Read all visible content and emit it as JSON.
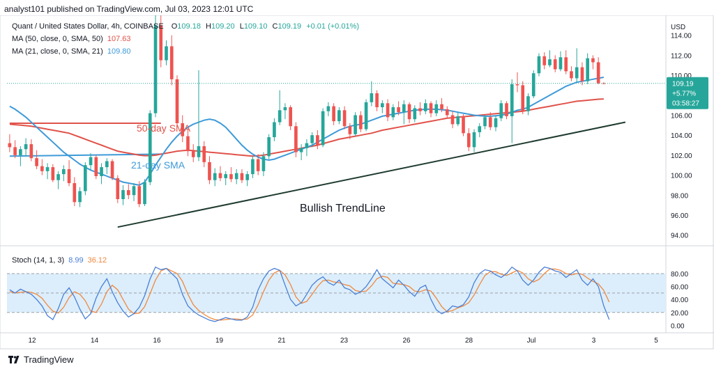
{
  "header_text": "analyst101 published on TradingView.com, Jul 03, 2023 12:01 UTC",
  "footer_text": "TradingView",
  "legend": {
    "symbol": "Quant / United States Dollar, 4h, COINBASE",
    "o_label": "O",
    "o": "109.18",
    "h_label": "H",
    "h": "109.20",
    "l_label": "L",
    "l": "109.10",
    "c_label": "C",
    "c": "109.19",
    "change": "+0.01 (+0.01%)",
    "ma50_label": "MA (50, close, 0, SMA, 50)",
    "ma50_value": "107.63",
    "ma21_label": "MA (21, close, 0, SMA, 21)",
    "ma21_value": "109.80",
    "stoch_label": "Stoch (14, 1, 3)",
    "stoch_k": "8.99",
    "stoch_d": "36.12"
  },
  "colors": {
    "up": "#26a69a",
    "down": "#ef5350",
    "ma50": "#e0524a",
    "ma21": "#3d9ad8",
    "trendline": "#1f3b2f",
    "stoch_k": "#4a7fd6",
    "stoch_d": "#f0883e",
    "stoch_band": "#dceefb",
    "price_tag": "#26a69a"
  },
  "chart_data": {
    "type": "candlestick",
    "price_axis": {
      "currency_label": "USD",
      "ticks": [
        94,
        96,
        98,
        100,
        102,
        104,
        106,
        108,
        110,
        112,
        114
      ],
      "ylim": [
        93,
        116
      ]
    },
    "x_axis": {
      "ticks": [
        "12",
        "14",
        "16",
        "19",
        "21",
        "23",
        "26",
        "28",
        "Jul",
        "3",
        "5"
      ]
    },
    "current_price_tag": {
      "price": "109.19",
      "change_pct": "+5.77%",
      "countdown": "03:58:27"
    },
    "annotations": {
      "ma50_text": "50-day SMA",
      "ma21_text": "21-day SMA",
      "trendline_text": "Bullish TrendLine"
    },
    "candles": [
      [
        103.2,
        104.1,
        102.3,
        102.8
      ],
      [
        102.8,
        103.5,
        101.7,
        102.0
      ],
      [
        102.0,
        102.9,
        100.9,
        102.6
      ],
      [
        102.6,
        103.7,
        101.9,
        103.1
      ],
      [
        103.1,
        103.6,
        101.4,
        101.7
      ],
      [
        101.7,
        102.5,
        100.6,
        100.9
      ],
      [
        100.9,
        101.6,
        100.0,
        100.4
      ],
      [
        100.4,
        101.2,
        99.6,
        100.8
      ],
      [
        100.8,
        101.1,
        99.3,
        99.5
      ],
      [
        99.5,
        100.4,
        98.6,
        100.1
      ],
      [
        100.1,
        101.0,
        99.4,
        100.6
      ],
      [
        100.6,
        101.5,
        98.9,
        99.2
      ],
      [
        99.2,
        99.8,
        96.9,
        97.3
      ],
      [
        97.3,
        98.8,
        96.8,
        98.4
      ],
      [
        98.4,
        101.3,
        98.0,
        101.0
      ],
      [
        101.0,
        102.2,
        100.5,
        101.8
      ],
      [
        101.8,
        102.0,
        99.6,
        99.9
      ],
      [
        99.9,
        101.2,
        99.1,
        100.8
      ],
      [
        100.8,
        101.7,
        100.1,
        101.4
      ],
      [
        101.4,
        101.6,
        99.5,
        99.7
      ],
      [
        99.7,
        100.0,
        97.2,
        97.6
      ],
      [
        97.6,
        99.0,
        97.0,
        98.5
      ],
      [
        98.5,
        99.1,
        97.6,
        98.0
      ],
      [
        98.0,
        99.2,
        97.4,
        98.9
      ],
      [
        98.9,
        99.4,
        96.8,
        97.1
      ],
      [
        97.1,
        99.6,
        96.9,
        99.3
      ],
      [
        99.3,
        106.5,
        99.0,
        106.2
      ],
      [
        106.2,
        116.0,
        105.8,
        115.0
      ],
      [
        115.0,
        116.2,
        110.8,
        111.5
      ],
      [
        111.5,
        113.5,
        111.0,
        112.9
      ],
      [
        112.9,
        114.0,
        109.0,
        109.6
      ],
      [
        109.6,
        110.0,
        104.8,
        105.2
      ],
      [
        105.2,
        106.0,
        103.3,
        103.9
      ],
      [
        103.9,
        104.6,
        101.9,
        102.4
      ],
      [
        102.4,
        103.1,
        101.3,
        101.8
      ],
      [
        101.8,
        110.5,
        101.4,
        102.9
      ],
      [
        102.9,
        103.4,
        100.8,
        101.3
      ],
      [
        101.3,
        101.9,
        99.1,
        99.5
      ],
      [
        99.5,
        100.7,
        98.9,
        100.2
      ],
      [
        100.2,
        100.9,
        99.4,
        99.7
      ],
      [
        99.7,
        100.4,
        99.0,
        100.1
      ],
      [
        100.1,
        100.8,
        99.3,
        99.6
      ],
      [
        99.6,
        100.6,
        99.1,
        100.2
      ],
      [
        100.2,
        100.6,
        99.2,
        99.5
      ],
      [
        99.5,
        100.4,
        98.9,
        100.1
      ],
      [
        100.1,
        101.9,
        99.7,
        101.6
      ],
      [
        101.6,
        102.1,
        100.0,
        100.4
      ],
      [
        100.4,
        102.3,
        99.9,
        101.9
      ],
      [
        101.9,
        104.1,
        101.6,
        103.8
      ],
      [
        103.8,
        105.7,
        103.4,
        105.3
      ],
      [
        105.3,
        108.5,
        105.0,
        106.5
      ],
      [
        106.5,
        107.2,
        105.6,
        106.8
      ],
      [
        106.8,
        107.0,
        104.5,
        104.9
      ],
      [
        104.9,
        105.3,
        101.8,
        102.3
      ],
      [
        102.3,
        103.1,
        101.5,
        102.7
      ],
      [
        102.7,
        103.6,
        101.9,
        103.2
      ],
      [
        103.2,
        104.3,
        102.8,
        104.0
      ],
      [
        104.0,
        104.5,
        102.6,
        103.0
      ],
      [
        103.0,
        106.7,
        102.8,
        106.4
      ],
      [
        106.4,
        107.3,
        105.9,
        106.9
      ],
      [
        106.9,
        107.2,
        105.0,
        105.4
      ],
      [
        105.4,
        106.8,
        105.1,
        106.5
      ],
      [
        106.5,
        106.9,
        104.6,
        104.9
      ],
      [
        104.9,
        105.2,
        103.6,
        104.1
      ],
      [
        104.1,
        106.3,
        103.9,
        106.0
      ],
      [
        106.0,
        106.4,
        104.3,
        104.6
      ],
      [
        104.6,
        107.6,
        104.4,
        107.3
      ],
      [
        107.3,
        109.4,
        106.9,
        108.2
      ],
      [
        108.2,
        108.5,
        106.4,
        106.8
      ],
      [
        106.8,
        107.5,
        106.2,
        107.2
      ],
      [
        107.2,
        107.6,
        105.4,
        105.8
      ],
      [
        105.8,
        107.1,
        105.5,
        106.8
      ],
      [
        106.8,
        107.4,
        106.0,
        106.3
      ],
      [
        106.3,
        107.5,
        105.1,
        107.1
      ],
      [
        107.1,
        107.3,
        105.2,
        105.6
      ],
      [
        105.6,
        107.0,
        105.3,
        106.7
      ],
      [
        106.7,
        107.3,
        106.0,
        106.4
      ],
      [
        106.4,
        107.6,
        106.1,
        107.2
      ],
      [
        107.2,
        107.4,
        105.8,
        106.2
      ],
      [
        106.2,
        107.5,
        105.9,
        107.1
      ],
      [
        107.1,
        107.7,
        106.3,
        106.6
      ],
      [
        106.6,
        106.9,
        105.7,
        106.0
      ],
      [
        106.0,
        106.4,
        104.7,
        105.1
      ],
      [
        105.1,
        106.3,
        104.9,
        105.9
      ],
      [
        105.9,
        106.1,
        103.9,
        104.2
      ],
      [
        104.2,
        104.7,
        102.4,
        102.8
      ],
      [
        102.8,
        104.6,
        102.3,
        104.3
      ],
      [
        104.3,
        105.2,
        103.8,
        104.9
      ],
      [
        104.9,
        106.0,
        104.6,
        105.8
      ],
      [
        105.8,
        106.3,
        104.5,
        104.8
      ],
      [
        104.8,
        106.0,
        104.4,
        105.7
      ],
      [
        105.7,
        107.5,
        105.4,
        107.2
      ],
      [
        107.2,
        107.4,
        105.6,
        105.9
      ],
      [
        105.9,
        109.6,
        103.2,
        109.1
      ],
      [
        109.1,
        110.3,
        108.3,
        109.0
      ],
      [
        109.0,
        109.4,
        106.1,
        106.4
      ],
      [
        106.4,
        108.2,
        106.0,
        107.9
      ],
      [
        107.9,
        110.5,
        107.7,
        110.2
      ],
      [
        110.2,
        112.2,
        109.9,
        111.9
      ],
      [
        111.9,
        112.3,
        110.6,
        111.0
      ],
      [
        111.0,
        112.5,
        110.8,
        111.6
      ],
      [
        111.6,
        112.0,
        110.3,
        110.6
      ],
      [
        110.6,
        112.4,
        110.4,
        111.8
      ],
      [
        111.8,
        112.5,
        110.1,
        110.4
      ],
      [
        110.4,
        110.9,
        109.4,
        109.7
      ],
      [
        109.7,
        112.7,
        109.3,
        110.8
      ],
      [
        110.8,
        111.3,
        109.0,
        109.4
      ],
      [
        109.4,
        112.2,
        109.1,
        111.7
      ],
      [
        111.7,
        112.0,
        110.6,
        111.3
      ],
      [
        111.3,
        111.8,
        109.1,
        109.2
      ],
      [
        109.2,
        109.3,
        109.1,
        109.19
      ]
    ],
    "ma50": [
      105.1,
      105.05,
      105.0,
      104.95,
      104.9,
      104.8,
      104.7,
      104.6,
      104.5,
      104.4,
      104.3,
      104.2,
      104.0,
      103.8,
      103.6,
      103.4,
      103.2,
      103.0,
      102.8,
      102.6,
      102.4,
      102.3,
      102.2,
      102.1,
      102.0,
      101.95,
      101.95,
      102.0,
      102.1,
      102.2,
      102.3,
      102.4,
      102.45,
      102.5,
      102.45,
      102.4,
      102.35,
      102.3,
      102.25,
      102.2,
      102.15,
      102.1,
      102.05,
      102.0,
      101.95,
      101.9,
      101.95,
      102.0,
      102.1,
      102.2,
      102.3,
      102.4,
      102.5,
      102.6,
      102.7,
      102.8,
      102.9,
      103.0,
      103.15,
      103.3,
      103.45,
      103.6,
      103.7,
      103.8,
      103.9,
      104.0,
      104.1,
      104.2,
      104.35,
      104.5,
      104.6,
      104.7,
      104.8,
      104.9,
      105.0,
      105.1,
      105.2,
      105.3,
      105.4,
      105.5,
      105.6,
      105.7,
      105.75,
      105.8,
      105.85,
      105.9,
      105.95,
      106.0,
      106.05,
      106.1,
      106.15,
      106.2,
      106.25,
      106.3,
      106.35,
      106.4,
      106.5,
      106.6,
      106.7,
      106.8,
      106.9,
      107.0,
      107.1,
      107.2,
      107.3,
      107.4,
      107.45,
      107.5,
      107.55,
      107.6,
      107.63
    ],
    "ma21": [
      106.9,
      106.6,
      106.2,
      105.8,
      105.3,
      104.8,
      104.3,
      103.8,
      103.3,
      102.8,
      102.3,
      101.9,
      101.5,
      101.1,
      100.8,
      100.5,
      100.3,
      100.1,
      99.9,
      99.7,
      99.5,
      99.3,
      99.2,
      99.1,
      99.0,
      99.3,
      100.1,
      101.0,
      101.8,
      102.6,
      103.3,
      103.9,
      104.4,
      104.8,
      105.1,
      105.3,
      105.5,
      105.6,
      105.5,
      105.2,
      104.8,
      104.2,
      103.6,
      103.0,
      102.5,
      102.1,
      101.8,
      101.6,
      101.5,
      101.6,
      101.8,
      102.0,
      102.2,
      102.4,
      102.6,
      102.8,
      103.0,
      103.3,
      103.6,
      103.9,
      104.2,
      104.5,
      104.7,
      104.9,
      105.0,
      105.1,
      105.3,
      105.5,
      105.7,
      105.9,
      106.0,
      106.1,
      106.2,
      106.3,
      106.4,
      106.5,
      106.55,
      106.6,
      106.6,
      106.6,
      106.55,
      106.5,
      106.4,
      106.3,
      106.2,
      106.1,
      106.0,
      105.95,
      105.9,
      105.9,
      105.95,
      106.0,
      106.1,
      106.3,
      106.5,
      106.6,
      106.8,
      107.1,
      107.4,
      107.7,
      108.0,
      108.3,
      108.6,
      108.9,
      109.1,
      109.3,
      109.4,
      109.5,
      109.6,
      109.7,
      109.8
    ],
    "old_ma50_segment": {
      "x_index": [
        0,
        28
      ],
      "price": 105.2
    },
    "old_ma21_segment": {
      "x_index": [
        0,
        28
      ],
      "price": 101.9,
      "end_price": 102.1
    },
    "trendline": {
      "start_index": 20,
      "start_price": 94.8,
      "end_index": 114,
      "end_price": 105.3
    },
    "stoch": {
      "ticks": [
        0,
        20,
        40,
        60,
        80
      ],
      "upper_band": 80,
      "lower_band": 20,
      "k": [
        55,
        50,
        56,
        52,
        48,
        40,
        30,
        15,
        9,
        26,
        48,
        58,
        44,
        25,
        10,
        18,
        42,
        60,
        72,
        52,
        35,
        22,
        13,
        18,
        28,
        46,
        72,
        90,
        86,
        88,
        80,
        72,
        48,
        30,
        22,
        16,
        12,
        8,
        6,
        9,
        12,
        10,
        8,
        8,
        13,
        28,
        55,
        72,
        84,
        88,
        85,
        62,
        40,
        30,
        35,
        48,
        62,
        70,
        75,
        66,
        62,
        70,
        58,
        55,
        48,
        52,
        60,
        72,
        86,
        72,
        65,
        58,
        70,
        62,
        52,
        45,
        58,
        62,
        40,
        24,
        18,
        22,
        30,
        28,
        32,
        44,
        66,
        80,
        86,
        84,
        78,
        74,
        80,
        90,
        84,
        70,
        62,
        70,
        82,
        90,
        88,
        84,
        82,
        74,
        80,
        86,
        70,
        62,
        72,
        60,
        30,
        8.99
      ],
      "d": [
        52,
        50,
        51,
        52,
        51,
        48,
        42,
        31,
        22,
        19,
        28,
        43,
        52,
        48,
        38,
        22,
        20,
        33,
        52,
        62,
        55,
        40,
        25,
        18,
        19,
        29,
        49,
        70,
        84,
        88,
        84,
        80,
        68,
        48,
        32,
        23,
        17,
        12,
        9,
        8,
        9,
        10,
        10,
        9,
        10,
        16,
        32,
        52,
        70,
        81,
        85,
        78,
        63,
        44,
        34,
        37,
        48,
        60,
        69,
        70,
        67,
        66,
        63,
        61,
        54,
        52,
        53,
        61,
        72,
        76,
        74,
        65,
        64,
        63,
        60,
        53,
        52,
        55,
        53,
        42,
        29,
        21,
        23,
        27,
        30,
        35,
        47,
        63,
        77,
        83,
        83,
        79,
        77,
        81,
        85,
        81,
        72,
        67,
        71,
        80,
        87,
        87,
        85,
        80,
        78,
        80,
        79,
        73,
        68,
        64,
        54,
        36.12
      ]
    }
  }
}
